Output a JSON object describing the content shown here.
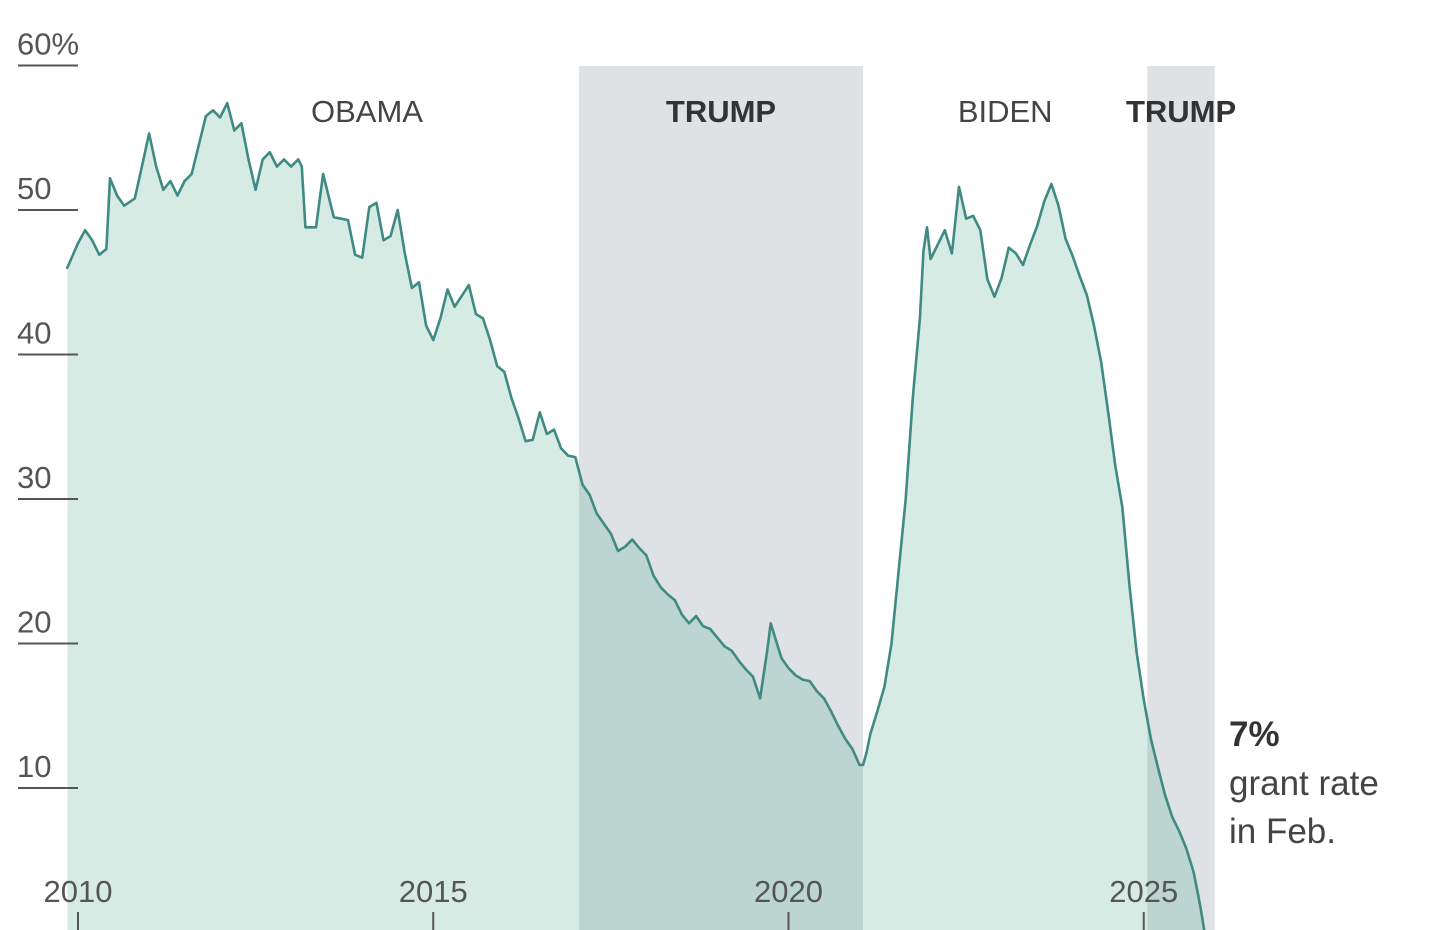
{
  "chart_data": {
    "type": "area",
    "title": "",
    "xlabel": "",
    "ylabel": "",
    "ylim": [
      0,
      60
    ],
    "xlim": [
      2009.85,
      2026.0
    ],
    "y_ticks": [
      {
        "value": 60,
        "label": "60%"
      },
      {
        "value": 50,
        "label": "50"
      },
      {
        "value": 40,
        "label": "40"
      },
      {
        "value": 30,
        "label": "30"
      },
      {
        "value": 20,
        "label": "20"
      },
      {
        "value": 10,
        "label": "10"
      }
    ],
    "x_ticks": [
      {
        "value": 2010,
        "label": "2010"
      },
      {
        "value": 2015,
        "label": "2015"
      },
      {
        "value": 2020,
        "label": "2020"
      },
      {
        "value": 2025,
        "label": "2025"
      }
    ],
    "eras": [
      {
        "label": "OBAMA",
        "start": 2009.85,
        "end": 2017.05,
        "shaded": false,
        "bold": false
      },
      {
        "label": "TRUMP",
        "start": 2017.05,
        "end": 2021.05,
        "shaded": true,
        "bold": true
      },
      {
        "label": "BIDEN",
        "start": 2021.05,
        "end": 2025.05,
        "shaded": false,
        "bold": false
      },
      {
        "label": "TRUMP",
        "start": 2025.05,
        "end": 2026.0,
        "shaded": true,
        "bold": true
      }
    ],
    "annotation": {
      "value": "7%",
      "line1": "grant rate",
      "line2": "in Feb."
    },
    "colors": {
      "line": "#3f8a82",
      "fill": "#d7ebe5",
      "fill_shaded": "#bdd5d0",
      "era_shade": "#dfe2e5",
      "grid": "#555555"
    },
    "series": [
      {
        "values": [
          [
            2009.85,
            46.0
          ],
          [
            2010.0,
            47.7
          ],
          [
            2010.1,
            48.6
          ],
          [
            2010.2,
            47.9
          ],
          [
            2010.3,
            46.9
          ],
          [
            2010.4,
            47.3
          ],
          [
            2010.45,
            52.2
          ],
          [
            2010.55,
            51.0
          ],
          [
            2010.65,
            50.3
          ],
          [
            2010.8,
            50.8
          ],
          [
            2010.9,
            53.0
          ],
          [
            2011.0,
            55.3
          ],
          [
            2011.1,
            53.0
          ],
          [
            2011.2,
            51.4
          ],
          [
            2011.3,
            52.0
          ],
          [
            2011.4,
            51.0
          ],
          [
            2011.5,
            52.0
          ],
          [
            2011.6,
            52.5
          ],
          [
            2011.7,
            54.5
          ],
          [
            2011.8,
            56.5
          ],
          [
            2011.9,
            56.9
          ],
          [
            2012.0,
            56.4
          ],
          [
            2012.1,
            57.4
          ],
          [
            2012.2,
            55.5
          ],
          [
            2012.3,
            56.0
          ],
          [
            2012.4,
            53.5
          ],
          [
            2012.5,
            51.4
          ],
          [
            2012.6,
            53.5
          ],
          [
            2012.7,
            54.0
          ],
          [
            2012.8,
            53.0
          ],
          [
            2012.9,
            53.5
          ],
          [
            2013.0,
            53.0
          ],
          [
            2013.1,
            53.5
          ],
          [
            2013.15,
            53.0
          ],
          [
            2013.2,
            48.8
          ],
          [
            2013.35,
            48.8
          ],
          [
            2013.45,
            52.5
          ],
          [
            2013.6,
            49.5
          ],
          [
            2013.8,
            49.3
          ],
          [
            2013.9,
            46.9
          ],
          [
            2014.0,
            46.7
          ],
          [
            2014.1,
            50.2
          ],
          [
            2014.2,
            50.5
          ],
          [
            2014.3,
            47.9
          ],
          [
            2014.4,
            48.2
          ],
          [
            2014.5,
            50.0
          ],
          [
            2014.6,
            47.0
          ],
          [
            2014.7,
            44.6
          ],
          [
            2014.8,
            45.0
          ],
          [
            2014.9,
            42.0
          ],
          [
            2015.0,
            41.0
          ],
          [
            2015.1,
            42.5
          ],
          [
            2015.2,
            44.5
          ],
          [
            2015.3,
            43.3
          ],
          [
            2015.5,
            44.8
          ],
          [
            2015.6,
            42.8
          ],
          [
            2015.7,
            42.5
          ],
          [
            2015.8,
            41.0
          ],
          [
            2015.9,
            39.2
          ],
          [
            2016.0,
            38.8
          ],
          [
            2016.1,
            37.0
          ],
          [
            2016.2,
            35.6
          ],
          [
            2016.3,
            34.0
          ],
          [
            2016.4,
            34.1
          ],
          [
            2016.5,
            36.0
          ],
          [
            2016.6,
            34.5
          ],
          [
            2016.7,
            34.8
          ],
          [
            2016.8,
            33.5
          ],
          [
            2016.9,
            33.0
          ],
          [
            2017.0,
            32.9
          ],
          [
            2017.1,
            31.0
          ],
          [
            2017.2,
            30.3
          ],
          [
            2017.3,
            29.0
          ],
          [
            2017.4,
            28.3
          ],
          [
            2017.5,
            27.6
          ],
          [
            2017.6,
            26.4
          ],
          [
            2017.7,
            26.7
          ],
          [
            2017.8,
            27.2
          ],
          [
            2017.9,
            26.6
          ],
          [
            2018.0,
            26.1
          ],
          [
            2018.1,
            24.7
          ],
          [
            2018.2,
            23.9
          ],
          [
            2018.3,
            23.4
          ],
          [
            2018.4,
            23.0
          ],
          [
            2018.5,
            22.0
          ],
          [
            2018.6,
            21.4
          ],
          [
            2018.7,
            21.9
          ],
          [
            2018.8,
            21.2
          ],
          [
            2018.9,
            21.0
          ],
          [
            2019.0,
            20.4
          ],
          [
            2019.1,
            19.8
          ],
          [
            2019.2,
            19.5
          ],
          [
            2019.3,
            18.8
          ],
          [
            2019.4,
            18.2
          ],
          [
            2019.5,
            17.7
          ],
          [
            2019.6,
            16.2
          ],
          [
            2019.7,
            19.5
          ],
          [
            2019.75,
            21.4
          ],
          [
            2019.9,
            19.0
          ],
          [
            2020.0,
            18.3
          ],
          [
            2020.1,
            17.8
          ],
          [
            2020.2,
            17.5
          ],
          [
            2020.3,
            17.4
          ],
          [
            2020.4,
            16.7
          ],
          [
            2020.5,
            16.2
          ],
          [
            2020.6,
            15.3
          ],
          [
            2020.7,
            14.3
          ],
          [
            2020.8,
            13.4
          ],
          [
            2020.9,
            12.7
          ],
          [
            2021.0,
            11.6
          ],
          [
            2021.05,
            11.6
          ],
          [
            2021.1,
            12.5
          ],
          [
            2021.15,
            13.7
          ],
          [
            2021.25,
            15.3
          ],
          [
            2021.35,
            17.0
          ],
          [
            2021.45,
            20.0
          ],
          [
            2021.55,
            25.0
          ],
          [
            2021.65,
            30.0
          ],
          [
            2021.75,
            37.0
          ],
          [
            2021.85,
            42.5
          ],
          [
            2021.9,
            47.2
          ],
          [
            2021.95,
            48.8
          ],
          [
            2022.0,
            46.6
          ],
          [
            2022.1,
            47.6
          ],
          [
            2022.2,
            48.6
          ],
          [
            2022.3,
            47.0
          ],
          [
            2022.4,
            51.6
          ],
          [
            2022.5,
            49.4
          ],
          [
            2022.6,
            49.6
          ],
          [
            2022.7,
            48.6
          ],
          [
            2022.8,
            45.2
          ],
          [
            2022.9,
            44.0
          ],
          [
            2023.0,
            45.3
          ],
          [
            2023.1,
            47.4
          ],
          [
            2023.2,
            47.0
          ],
          [
            2023.3,
            46.2
          ],
          [
            2023.4,
            47.6
          ],
          [
            2023.5,
            48.9
          ],
          [
            2023.6,
            50.6
          ],
          [
            2023.7,
            51.8
          ],
          [
            2023.8,
            50.3
          ],
          [
            2023.9,
            48.0
          ],
          [
            2024.0,
            46.8
          ],
          [
            2024.1,
            45.4
          ],
          [
            2024.2,
            44.1
          ],
          [
            2024.3,
            42.0
          ],
          [
            2024.4,
            39.5
          ],
          [
            2024.5,
            36.0
          ],
          [
            2024.6,
            32.3
          ],
          [
            2024.7,
            29.4
          ],
          [
            2024.8,
            24.0
          ],
          [
            2024.9,
            19.4
          ],
          [
            2025.0,
            16.1
          ],
          [
            2025.1,
            13.4
          ],
          [
            2025.2,
            11.4
          ],
          [
            2025.3,
            9.5
          ],
          [
            2025.4,
            8.0
          ],
          [
            2025.5,
            7.0
          ],
          [
            2025.6,
            5.8
          ],
          [
            2025.7,
            4.2
          ],
          [
            2025.75,
            3.0
          ],
          [
            2025.8,
            1.7
          ],
          [
            2025.85,
            0.2
          ],
          [
            2025.9,
            -0.5
          ],
          [
            2026.0,
            -0.6
          ]
        ]
      }
    ]
  }
}
